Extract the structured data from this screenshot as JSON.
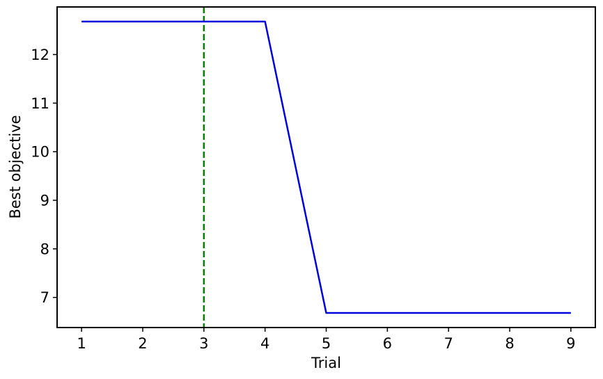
{
  "chart_data": {
    "type": "line",
    "title": "",
    "xlabel": "Trial",
    "ylabel": "Best objective",
    "xlim": [
      0.6,
      9.4
    ],
    "ylim": [
      6.38,
      12.98
    ],
    "x_ticks": [
      1,
      2,
      3,
      4,
      5,
      6,
      7,
      8,
      9
    ],
    "y_ticks": [
      7,
      8,
      9,
      10,
      11,
      12
    ],
    "grid": false,
    "series": [
      {
        "name": "best_objective",
        "color": "#0000dd",
        "style": "solid",
        "x": [
          1,
          2,
          3,
          4,
          5,
          6,
          7,
          8,
          9
        ],
        "y": [
          12.68,
          12.68,
          12.68,
          12.68,
          6.68,
          6.68,
          6.68,
          6.68,
          6.68
        ]
      }
    ],
    "vlines": [
      {
        "x": 3,
        "color": "#008000",
        "style": "dashed"
      }
    ]
  }
}
